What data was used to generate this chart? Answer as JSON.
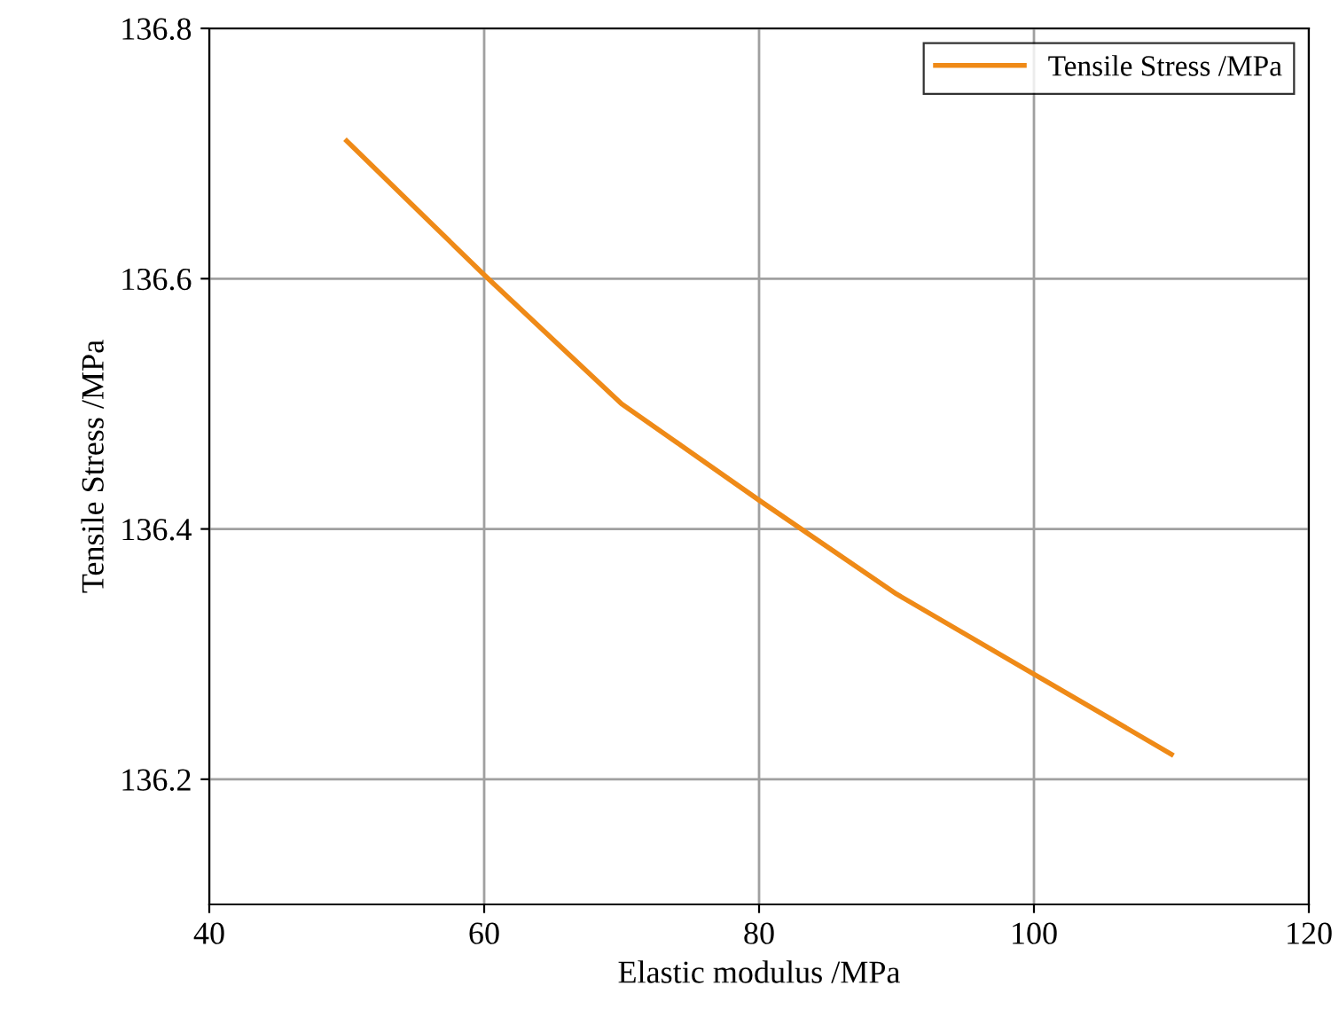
{
  "chart_data": {
    "type": "line",
    "xlabel": "Elastic modulus /MPa",
    "ylabel": "Tensile Stress /MPa",
    "x": [
      50,
      60,
      70,
      80,
      90,
      100,
      110
    ],
    "series": [
      {
        "name": "Tensile Stress /MPa",
        "color": "#ef8a17",
        "values": [
          136.71,
          136.603,
          136.5,
          136.423,
          136.348,
          136.284,
          136.22
        ]
      }
    ],
    "xlim": [
      40,
      120
    ],
    "xticks": [
      40,
      60,
      80,
      100,
      120
    ],
    "ylim": [
      136.1,
      136.8
    ],
    "yticks": [
      136.2,
      136.4,
      136.6,
      136.8
    ],
    "grid": true,
    "legend": "top right",
    "marker": "none",
    "line_style": "solid"
  }
}
